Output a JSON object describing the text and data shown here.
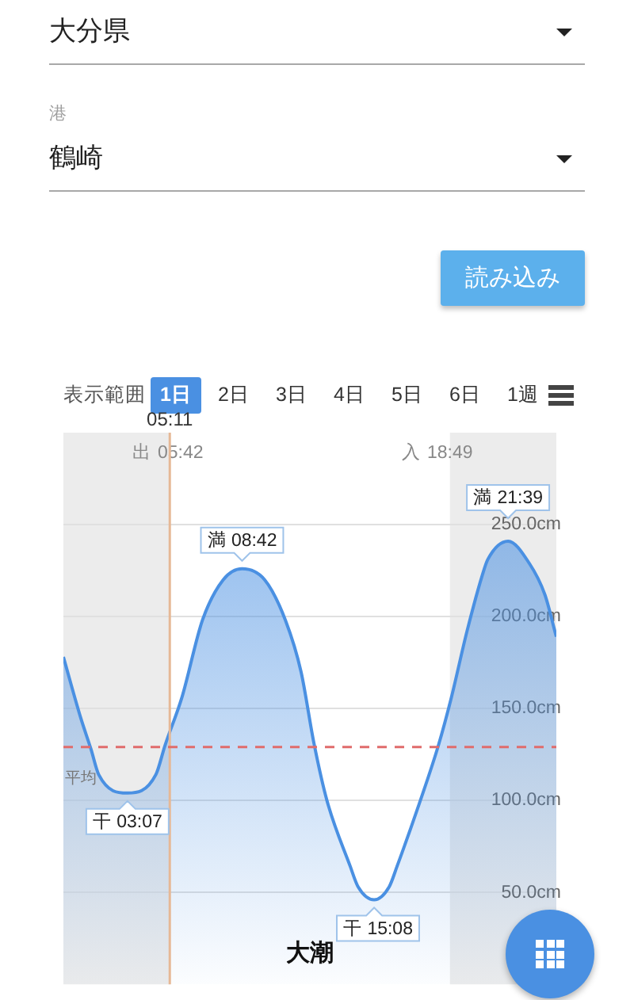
{
  "chart_data": {
    "type": "area",
    "x": [
      0,
      0.84,
      1.34,
      1.72,
      3.12,
      4.5,
      4.95,
      5.77,
      6.77,
      7.78,
      8.7,
      9.8,
      10.81,
      11.57,
      12.2,
      12.83,
      13.97,
      14.35,
      15.13,
      15.86,
      16.24,
      17.38,
      18.26,
      18.89,
      19.65,
      20.41,
      20.66,
      21.65,
      22.68,
      23.44,
      24
    ],
    "values": [
      178,
      145,
      128,
      114,
      104,
      114,
      130,
      156,
      198,
      220,
      226,
      220,
      198,
      170,
      131,
      100,
      64,
      53,
      46,
      53,
      64,
      100,
      130,
      156,
      192,
      223,
      231,
      241,
      229,
      212,
      189
    ],
    "color": "#4a90e2",
    "xlim": [
      0,
      24
    ],
    "ylim": [
      0,
      300
    ],
    "xticks": [
      {
        "value": 5.7,
        "label": "05:42"
      },
      {
        "value": 18.82,
        "label": "18:49"
      }
    ],
    "yticks": [
      {
        "value": 50,
        "label": "50.0cm"
      },
      {
        "value": 100,
        "label": "100.0cm"
      },
      {
        "value": 150,
        "label": "150.0cm"
      },
      {
        "value": 200,
        "label": "200.0cm"
      },
      {
        "value": 250,
        "label": "250.0cm"
      }
    ],
    "grid": "y",
    "bands": [
      {
        "axis": "x",
        "from": 0,
        "to": 5.18,
        "color": "#ececec"
      },
      {
        "axis": "x",
        "from": 18.82,
        "to": 24,
        "color": "#ececec"
      }
    ],
    "ref_lines": [
      {
        "axis": "x",
        "value": 5.18,
        "label": "05:11",
        "color": "#e6b896"
      },
      {
        "axis": "y",
        "value": 129,
        "label": "平均",
        "color": "#e06c6c",
        "line_style": "dashed"
      }
    ],
    "annotations": [
      "大分県",
      "港",
      "鶴崎",
      "読み込み",
      "表示範囲",
      "1日",
      "2日",
      "3日",
      "4日",
      "5日",
      "6日",
      "1週",
      "大潮",
      "出",
      "入",
      {
        "text": "干 03:07",
        "x": 3.12,
        "y": 104
      },
      {
        "text": "満 08:42",
        "x": 8.7,
        "y": 226
      },
      {
        "text": "干 15:08",
        "x": 15.13,
        "y": 46
      },
      {
        "text": "満 21:39",
        "x": 21.65,
        "y": 241
      }
    ]
  }
}
